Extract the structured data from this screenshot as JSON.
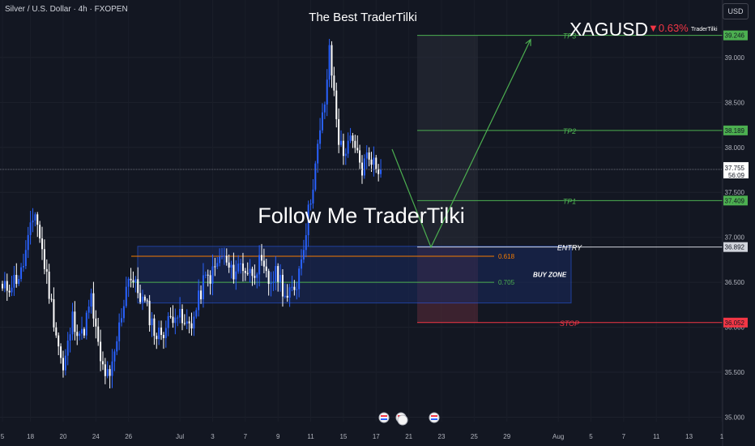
{
  "header": {
    "symbol_desc": "Silver / U.S. Dollar · 4h · FXOPEN",
    "currency": "USD"
  },
  "overlay": {
    "top_title": "The Best TraderTilki",
    "follow_text": "Follow Me TraderTilki",
    "ticker": "XAGUSD",
    "change": "▼0.63%",
    "brand": "TraderTilki"
  },
  "chart_data": {
    "type": "candlestick",
    "interval": "4h",
    "ylim": [
      34.95,
      39.45
    ],
    "y_ticks": [
      35.0,
      35.5,
      36.0,
      36.5,
      37.0,
      37.5,
      38.0,
      38.5,
      39.0
    ],
    "y_tick_labels": [
      "35.000",
      "35.500",
      "36.000",
      "36.500",
      "37.000",
      "37.500",
      "38.000",
      "38.500",
      "39.000"
    ],
    "x_ticks": [
      {
        "label": "5",
        "i": 0
      },
      {
        "label": "18",
        "i": 12
      },
      {
        "label": "20",
        "i": 26
      },
      {
        "label": "24",
        "i": 40
      },
      {
        "label": "26",
        "i": 54
      },
      {
        "label": "Jul",
        "i": 76
      },
      {
        "label": "3",
        "i": 90
      },
      {
        "label": "7",
        "i": 104
      },
      {
        "label": "9",
        "i": 118
      },
      {
        "label": "11",
        "i": 132
      },
      {
        "label": "15",
        "i": 146
      },
      {
        "label": "17",
        "i": 160
      },
      {
        "label": "21",
        "i": 174
      },
      {
        "label": "23",
        "i": 188
      },
      {
        "label": "25",
        "i": 202
      },
      {
        "label": "29",
        "i": 216
      },
      {
        "label": "Aug",
        "i": 238
      },
      {
        "label": "5",
        "i": 252
      },
      {
        "label": "7",
        "i": 266
      },
      {
        "label": "11",
        "i": 280
      },
      {
        "label": "13",
        "i": 294
      },
      {
        "label": "1",
        "i": 308
      }
    ],
    "candle_count": 163,
    "anchors": [
      [
        0,
        36.4
      ],
      [
        8,
        36.6
      ],
      [
        14,
        37.3
      ],
      [
        18,
        36.7
      ],
      [
        22,
        36.1
      ],
      [
        26,
        35.5
      ],
      [
        30,
        36.1
      ],
      [
        34,
        35.9
      ],
      [
        38,
        36.3
      ],
      [
        42,
        35.6
      ],
      [
        46,
        35.4
      ],
      [
        50,
        36.0
      ],
      [
        54,
        36.6
      ],
      [
        58,
        36.4
      ],
      [
        62,
        36.2
      ],
      [
        66,
        35.9
      ],
      [
        70,
        36.0
      ],
      [
        74,
        36.2
      ],
      [
        78,
        36.0
      ],
      [
        82,
        36.1
      ],
      [
        86,
        36.5
      ],
      [
        90,
        36.6
      ],
      [
        94,
        36.8
      ],
      [
        98,
        36.6
      ],
      [
        102,
        36.7
      ],
      [
        106,
        36.6
      ],
      [
        110,
        36.7
      ],
      [
        114,
        36.5
      ],
      [
        118,
        36.6
      ],
      [
        122,
        36.3
      ],
      [
        126,
        36.5
      ],
      [
        130,
        37.1
      ],
      [
        134,
        37.8
      ],
      [
        138,
        38.5
      ],
      [
        140,
        39.05
      ],
      [
        142,
        38.6
      ],
      [
        144,
        38.1
      ],
      [
        146,
        37.9
      ],
      [
        148,
        38.1
      ],
      [
        150,
        38.0
      ],
      [
        152,
        37.9
      ],
      [
        154,
        37.75
      ],
      [
        156,
        37.9
      ],
      [
        158,
        37.9
      ],
      [
        160,
        37.76
      ],
      [
        162,
        37.755
      ]
    ],
    "current_price": "37.755",
    "countdown": "56:09",
    "levels": [
      {
        "name": "TP3",
        "label": "TP3",
        "value": 39.246,
        "value_label": "39.246",
        "color": "#4caf50",
        "label_color": "#4caf50"
      },
      {
        "name": "TP2",
        "label": "TP2",
        "value": 38.189,
        "value_label": "38.189",
        "color": "#4caf50",
        "label_color": "#4caf50"
      },
      {
        "name": "TP1",
        "label": "TP1",
        "value": 37.409,
        "value_label": "37.409",
        "color": "#4caf50",
        "label_color": "#4caf50"
      },
      {
        "name": "ENTRY",
        "label": "ENTRY",
        "value": 36.892,
        "value_label": "36.892",
        "color": "#d1d4dc",
        "label_color": "#ffffff"
      },
      {
        "name": "STOP",
        "label": "STOP",
        "value": 36.052,
        "value_label": "36.052",
        "color": "#f23645",
        "label_color": "#f23645"
      }
    ],
    "buy_zone": {
      "label": "BUY ZONE",
      "top": 36.9,
      "bottom": 36.27,
      "fib_upper": {
        "label": "0.618",
        "value": 36.79
      },
      "fib_lower": {
        "label": "0.705",
        "value": 36.5
      }
    },
    "projection": [
      [
        37.98
      ],
      [
        36.89
      ],
      [
        39.2
      ]
    ],
    "colors": {
      "up": "#2962ff",
      "down": "#ffffff",
      "level_green": "#4caf50",
      "stop": "#f23645",
      "zone_fill": "#1a2a5e",
      "zone_border": "#2962ff",
      "fib_orange": "#f57c00",
      "fib_green": "#4caf50"
    }
  }
}
